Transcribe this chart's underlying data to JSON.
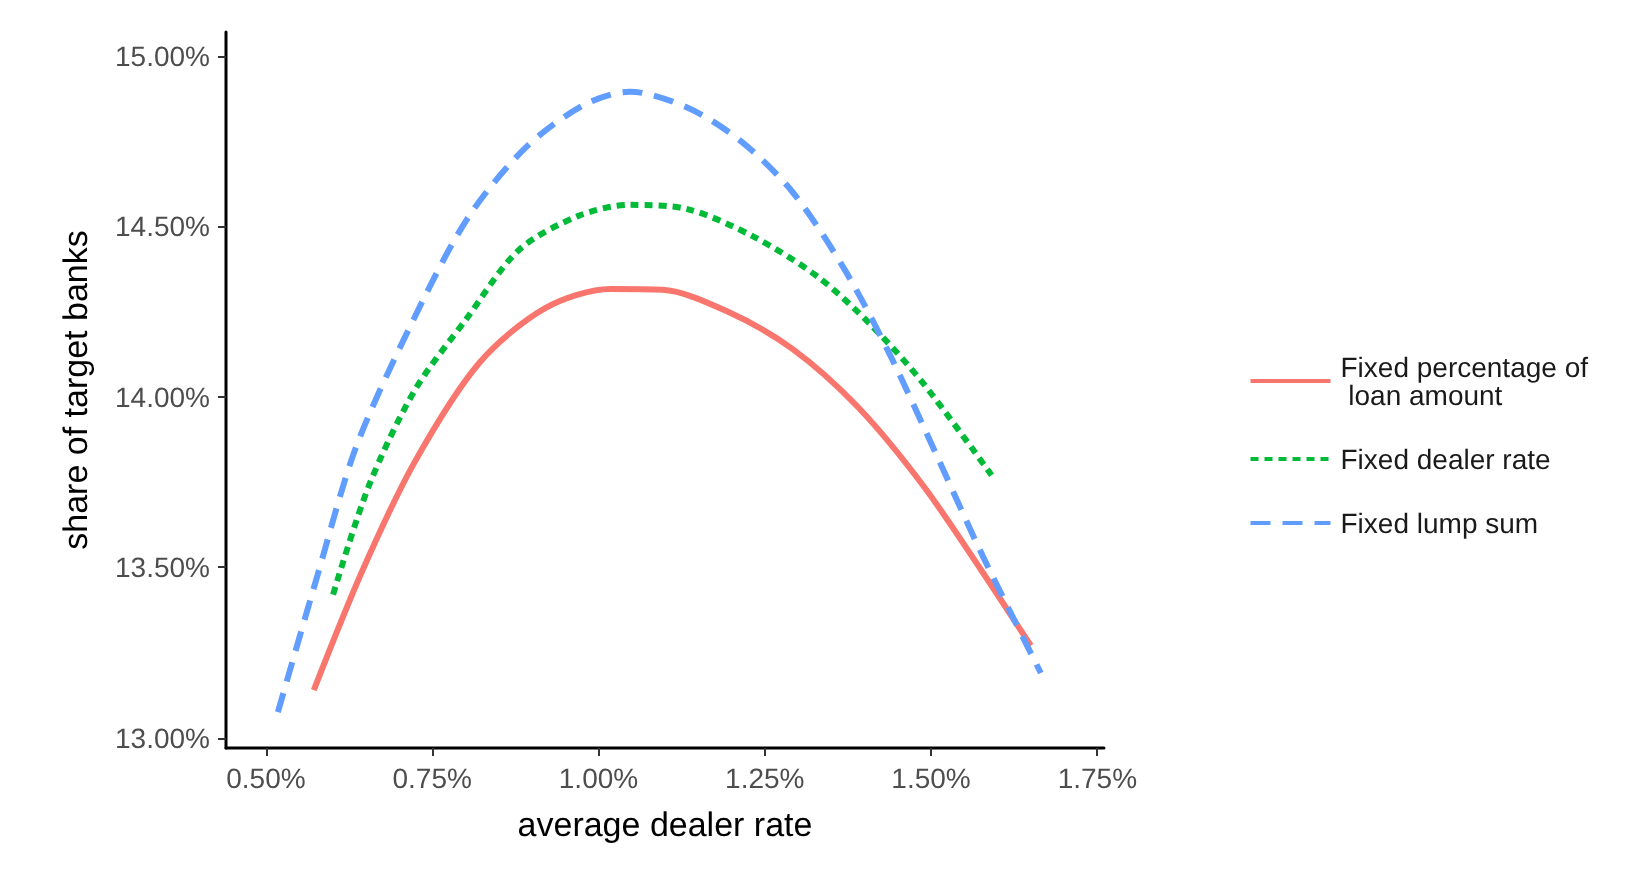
{
  "chart_data": {
    "type": "line",
    "xlabel": "average dealer rate",
    "ylabel": "share of target banks",
    "xlim": [
      0.44,
      1.76
    ],
    "ylim": [
      12.97,
      15.07
    ],
    "xticks": [
      {
        "value": 0.5,
        "label": "0.50%"
      },
      {
        "value": 0.75,
        "label": "0.75%"
      },
      {
        "value": 1.0,
        "label": "1.00%"
      },
      {
        "value": 1.25,
        "label": "1.25%"
      },
      {
        "value": 1.5,
        "label": "1.50%"
      },
      {
        "value": 1.75,
        "label": "1.75%"
      }
    ],
    "yticks": [
      {
        "value": 13.0,
        "label": "13.00%"
      },
      {
        "value": 13.5,
        "label": "13.50%"
      },
      {
        "value": 14.0,
        "label": "14.00%"
      },
      {
        "value": 14.5,
        "label": "14.50%"
      },
      {
        "value": 15.0,
        "label": "15.00%"
      }
    ],
    "grid": false,
    "legend": "right",
    "marker": "none",
    "series": [
      {
        "name": "Fixed percentage of\n loan amount",
        "color": "#f8766d",
        "line_style": "solid",
        "x": [
          0.572,
          0.645,
          0.724,
          0.821,
          0.92,
          1.018,
          1.096,
          1.194,
          1.292,
          1.39,
          1.488,
          1.576,
          1.65
        ],
        "values": [
          13.14,
          13.49,
          13.81,
          14.1,
          14.26,
          14.316,
          14.314,
          14.25,
          14.14,
          13.97,
          13.74,
          13.49,
          13.27
        ]
      },
      {
        "name": "Fixed dealer rate",
        "color": "#00ba38",
        "line_style": "dotted",
        "x": [
          0.601,
          0.655,
          0.724,
          0.802,
          0.88,
          0.969,
          1.047,
          1.135,
          1.233,
          1.331,
          1.41,
          1.488,
          1.591
        ],
        "values": [
          13.42,
          13.74,
          14.02,
          14.23,
          14.43,
          14.53,
          14.563,
          14.55,
          14.47,
          14.35,
          14.21,
          14.04,
          13.77
        ]
      },
      {
        "name": "Fixed lump sum",
        "color": "#619cff",
        "line_style": "dashed",
        "x": [
          0.518,
          0.576,
          0.635,
          0.714,
          0.802,
          0.89,
          0.978,
          1.047,
          1.135,
          1.214,
          1.292,
          1.371,
          1.439,
          1.508,
          1.576,
          1.665
        ],
        "values": [
          13.075,
          13.466,
          13.85,
          14.195,
          14.52,
          14.73,
          14.856,
          14.895,
          14.847,
          14.75,
          14.6,
          14.37,
          14.12,
          13.83,
          13.54,
          13.19
        ]
      }
    ]
  }
}
